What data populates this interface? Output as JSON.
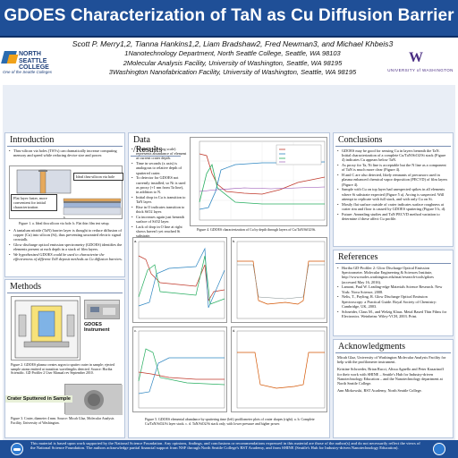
{
  "title": "GDOES Characterization of TaN as Cu Diffusion Barrier",
  "authors": "Scott P. Merry1,2, Tianna Hankins1,2, Liam Bradshaw2, Fred Newman3, and Michael Khbeis3",
  "affiliations": [
    "1Nanotechnology Department, North Seattle College, Seattle, WA 98103",
    "2Molecular Analysis Facility, University of Washington, Seattle, WA 98195",
    "3Washington Nanofabrication Facility, University of Washington, Seattle, WA 98195"
  ],
  "logos": {
    "nsc_name": "NORTH SEATTLE COLLEGE",
    "nsc_tagline": "One of the Seattle Colleges",
    "uw_name": "UNIVERSITY of WASHINGTON"
  },
  "introduction": {
    "heading": "Introduction",
    "bullets_top": [
      "Thru-silicon via holes (TSVs) can dramatically increase computing memory and speed while reducing device size and power."
    ],
    "callout_1": "Ideal thru-silicon via hole",
    "callout_2": "Flat layer faster, more convenient for initial characterization",
    "fig1_caption": "Figure 1. a. Ideal thru silicon via hole.  b. Flat thin film test setup.",
    "bullets_bottom": [
      "A tantalum nitride (TaN) barrier layer is thought to reduce diffusion of copper (Cu) into silicon (Si), thus preventing unwanted electric signal crosstalk.",
      "Glow discharge optical emission spectrometry (GDOES) identifies the elements present at each depth in a stack of film layers."
    ],
    "hypothesis": "We hypothesized GDOES could be used to characterize the effectiveness of different TaN deposit methods as Cu diffusion barriers."
  },
  "methods": {
    "heading": "Methods",
    "instrument_label": "GDOES Instrument",
    "fig2_caption": "Figure 2. GDOES plasma creates argon to sputter crater in sample; ejected sample atoms emitted at transition wavelengths detected. Source: Horiba Scientific. GD Profiler 2 User Manual rev September 2010.",
    "crater_label": "Crater Sputtered in Sample",
    "fig3_caption": "Figure 3. Crater, diameter 4 mm. Source: Micah Glaz, Molecular Analysis Facility, University of Washington."
  },
  "data": {
    "heading": "Data /Results",
    "bullets": [
      "Voltage (y axis, log scale) represents abundance of element at current crater depth.",
      "Time in seconds (x axis) is analogous to relative depth of sputtered crater.",
      "To detector for GDOES not currently installed, so Ni is used as proxy (+1 nm from Ta line), in addition to N.",
      "Initial drop in Cu is transition to TaN layer.",
      "Rise in O indicates transition to thick SiO2 layer.",
      "Cu increases again just beneath surface of SiO2 layer.",
      "Lack of drop in O line at right shows haven't yet reached Si substrate."
    ],
    "fig4_caption": "Figure 4. GDOES characterization of Cu by depth through layers of Cu/TaN/SiO2/Si.",
    "fig5_caption": "Figure 5. GDOES elemental abundance by sputtering time (left) profilometer plots of crater shapes (right). a. b. Complete Cu/TaN/SiO2/Si layer stack. c. d. TaN/SiO2/Si stack only, with lower pressure and higher power.",
    "panel_labels": [
      "a.",
      "b.",
      "c.",
      "d."
    ]
  },
  "conclusions": {
    "heading": "Conclusions",
    "bullets": [
      "GDOES may be good for sensing Cu in layers beneath the TaN. Initial characterization of a complete Cu/TaN/SiO2/Si stack (Figure 4) indicates Cu appears below TaN.",
      "As proxy for Ta, Ni line is acceptable but the N line as a component of TaN is much more clear (Figure 4).",
      "H and C are also detected, likely remnants of precursors used in plasma enhanced chemical vapor deposition (PECVD) of film layers (Figure 4).",
      "Sample with Cu on top layer had unexpected spikes in all elements where Si substrate expected (Figure 5 a). Arcing is suspected. Will attempt to replicate with full stack, and with only Cu on Si.",
      "Mostly flat surface outside of crater indicates surface roughness at crater rim and floor is caused by GDOES sputtering (Figure 5 b, d).",
      "Future: Annealing studies and TaN PECVD method variation to determine if these affect Cu profile."
    ]
  },
  "references": {
    "heading": "References",
    "items": [
      "Horiba GD-Profiler 2: Glow Discharge Optical Emission Spectrometer. Molecular Engineering & Sciences Institute, http://www.moles.washington.edu/mat/research-tools/gdoes (accessed May 16, 2016).",
      "Lamont, Paul W. Leading-edge Materials Science Research. New York: Nova Science, 2008.",
      "Nelis, T., Payling, R. Glow Discharge Optical Emission Spectroscopy: a Practical Guide. Royal Society of Chemistry: Cambridge, UK, 2003.",
      "Schneider, Claus M., and Welzig Klaus. Metal Based Thin Films for Electronics. Weinheim: Wiley-VCH, 2003. Print."
    ]
  },
  "acknowledgments": {
    "heading": "Acknowledgments",
    "paragraphs": [
      "Micah Glaz, University of Washington Molecular Analysis Facility for help with the profilometer instrument.",
      "Kristine Schroeder, Brian Rucci, Alissa Agnello and Peter Kazarinoff for their work with SHINE – Seattle's Hub for Industry-driven Nanotechnology Education – and the Nanotechnology department at North Seattle College.",
      "Ann Mirkowski, RST Academy, North Seattle College."
    ]
  },
  "footer": "This material is based upon work supported by the National Science Foundation. Any opinions, findings, and conclusions or recommendations expressed in this material are those of the author(s) and do not necessarily reflect the views of the National Science Foundation. The authors acknowledge partial financial support from NSF through North Seattle College's RST Academy, and from SHINE (Seattle's Hub for Industry-driven Nanotechnology Education).",
  "colors": {
    "header": "#1f4f97",
    "panel_bg": "#e9eef6",
    "cu_line": "#c0392b",
    "o_line": "#2e86c1",
    "n_line": "#27ae60"
  }
}
